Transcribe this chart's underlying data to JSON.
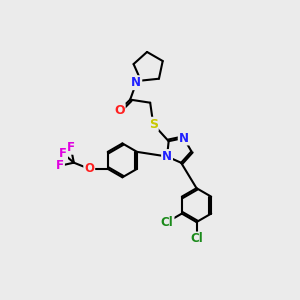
{
  "bg_color": "#ebebeb",
  "bond_color": "#000000",
  "atom_colors": {
    "N": "#2020ff",
    "O": "#ff2020",
    "S": "#c8c800",
    "F": "#e000e0",
    "Cl": "#1a8a1a",
    "C": "#000000"
  },
  "figsize": [
    3.0,
    3.0
  ],
  "dpi": 100
}
